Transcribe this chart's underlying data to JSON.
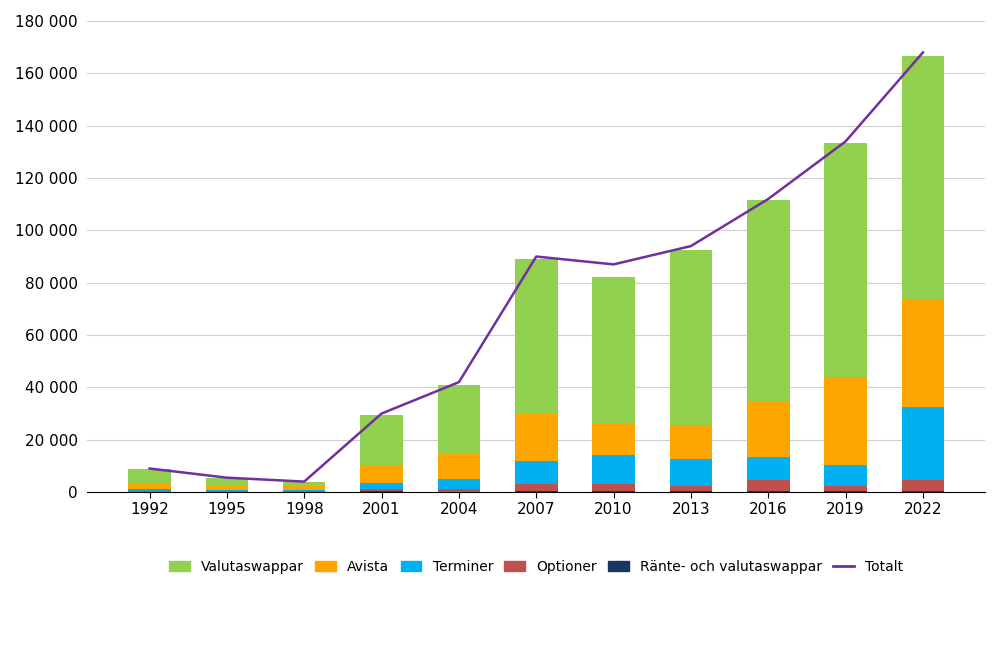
{
  "years": [
    1992,
    1995,
    1998,
    2001,
    2004,
    2007,
    2010,
    2013,
    2016,
    2019,
    2022
  ],
  "valutaswappar": [
    5500,
    2500,
    1500,
    19000,
    26000,
    59000,
    56000,
    67000,
    77000,
    90000,
    93000
  ],
  "avista": [
    2500,
    2000,
    1500,
    7000,
    10000,
    18000,
    12000,
    13000,
    21000,
    33000,
    41000
  ],
  "terminer": [
    500,
    500,
    500,
    2500,
    4000,
    9000,
    11000,
    10000,
    9000,
    8000,
    28000
  ],
  "optioner": [
    300,
    200,
    200,
    500,
    800,
    2500,
    2500,
    2000,
    4000,
    2000,
    4000
  ],
  "rante_valuta": [
    200,
    100,
    100,
    500,
    200,
    500,
    500,
    500,
    500,
    500,
    500
  ],
  "totalt": [
    9000,
    5500,
    4000,
    30000,
    42000,
    90000,
    87000,
    94000,
    112000,
    134000,
    168000
  ],
  "colors": {
    "valutaswappar": "#92d050",
    "avista": "#ffa500",
    "terminer": "#00b0f0",
    "optioner": "#c0504d",
    "rante_valuta": "#17375e",
    "totalt": "#7030a0"
  },
  "legend_labels": {
    "valutaswappar": "Valutaswappar",
    "avista": "Avista",
    "terminer": "Terminer",
    "optioner": "Optioner",
    "rante_valuta": "Ränte- och valutaswappar",
    "totalt": "Totalt"
  },
  "ylim": [
    0,
    180000
  ],
  "yticks": [
    0,
    20000,
    40000,
    60000,
    80000,
    100000,
    120000,
    140000,
    160000,
    180000
  ],
  "background_color": "#ffffff"
}
